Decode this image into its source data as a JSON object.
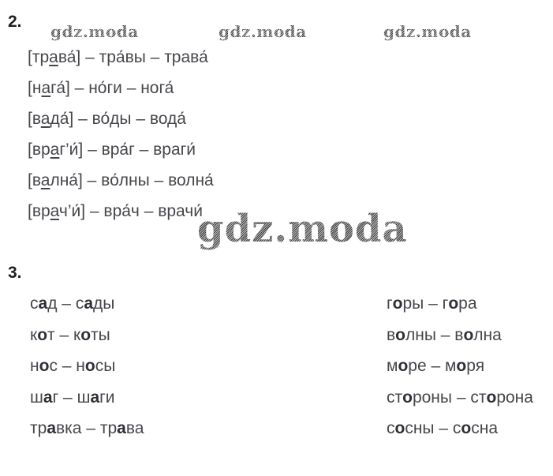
{
  "page": {
    "background": "#ffffff",
    "text_color": "#45474b",
    "bold_letter_color": "#2d3036",
    "watermark_color": "#7a7a7a"
  },
  "watermarks": {
    "top": [
      "gdz.moda",
      "gdz.moda",
      "gdz.moda"
    ],
    "center": "gdz.moda"
  },
  "section2": {
    "number": "2.",
    "lines": [
      {
        "pre": "[тр",
        "underlined": "а",
        "post": "ва́]",
        "rest": " – тра́вы – трава́"
      },
      {
        "pre": "[н",
        "underlined": "а",
        "post": "га́]",
        "rest": " – но́ги – нога́"
      },
      {
        "pre": "[в",
        "underlined": "а",
        "post": "да́]",
        "rest": " – во́ды – вода́"
      },
      {
        "pre": "[вр",
        "underlined": "а",
        "post": "г’и́]",
        "rest": " – вра́г – враги́"
      },
      {
        "pre": "[в",
        "underlined": "а",
        "post": "лна́]",
        "rest": " – во́лны – волна́"
      },
      {
        "pre": "[вр",
        "underlined": "а",
        "post": "ч’и́]",
        "rest": " – вра́ч – врачи́"
      }
    ]
  },
  "section3": {
    "number": "3.",
    "dash": " – ",
    "left": [
      {
        "p1": "с",
        "b1": "а",
        "s1": "д",
        "p2": "с",
        "b2": "а",
        "s2": "ды"
      },
      {
        "p1": "к",
        "b1": "о",
        "s1": "т",
        "p2": "к",
        "b2": "о",
        "s2": "ты"
      },
      {
        "p1": "н",
        "b1": "о",
        "s1": "с",
        "p2": "н",
        "b2": "о",
        "s2": "сы"
      },
      {
        "p1": "ш",
        "b1": "а",
        "s1": "г",
        "p2": "ш",
        "b2": "а",
        "s2": "ги"
      },
      {
        "p1": "тр",
        "b1": "а",
        "s1": "вка",
        "p2": "тр",
        "b2": "а",
        "s2": "ва"
      }
    ],
    "right": [
      {
        "p1": "г",
        "b1": "о",
        "s1": "ры",
        "p2": "г",
        "b2": "о",
        "s2": "ра"
      },
      {
        "p1": "в",
        "b1": "о",
        "s1": "лны",
        "p2": "в",
        "b2": "о",
        "s2": "лна"
      },
      {
        "p1": "м",
        "b1": "о",
        "s1": "ре",
        "p2": "м",
        "b2": "о",
        "s2": "ря"
      },
      {
        "p1": "ст",
        "b1": "о",
        "s1": "роны",
        "p2": "ст",
        "b2": "о",
        "s2": "рона"
      },
      {
        "p1": "с",
        "b1": "о",
        "s1": "сны",
        "p2": "с",
        "b2": "о",
        "s2": "сна"
      }
    ]
  }
}
